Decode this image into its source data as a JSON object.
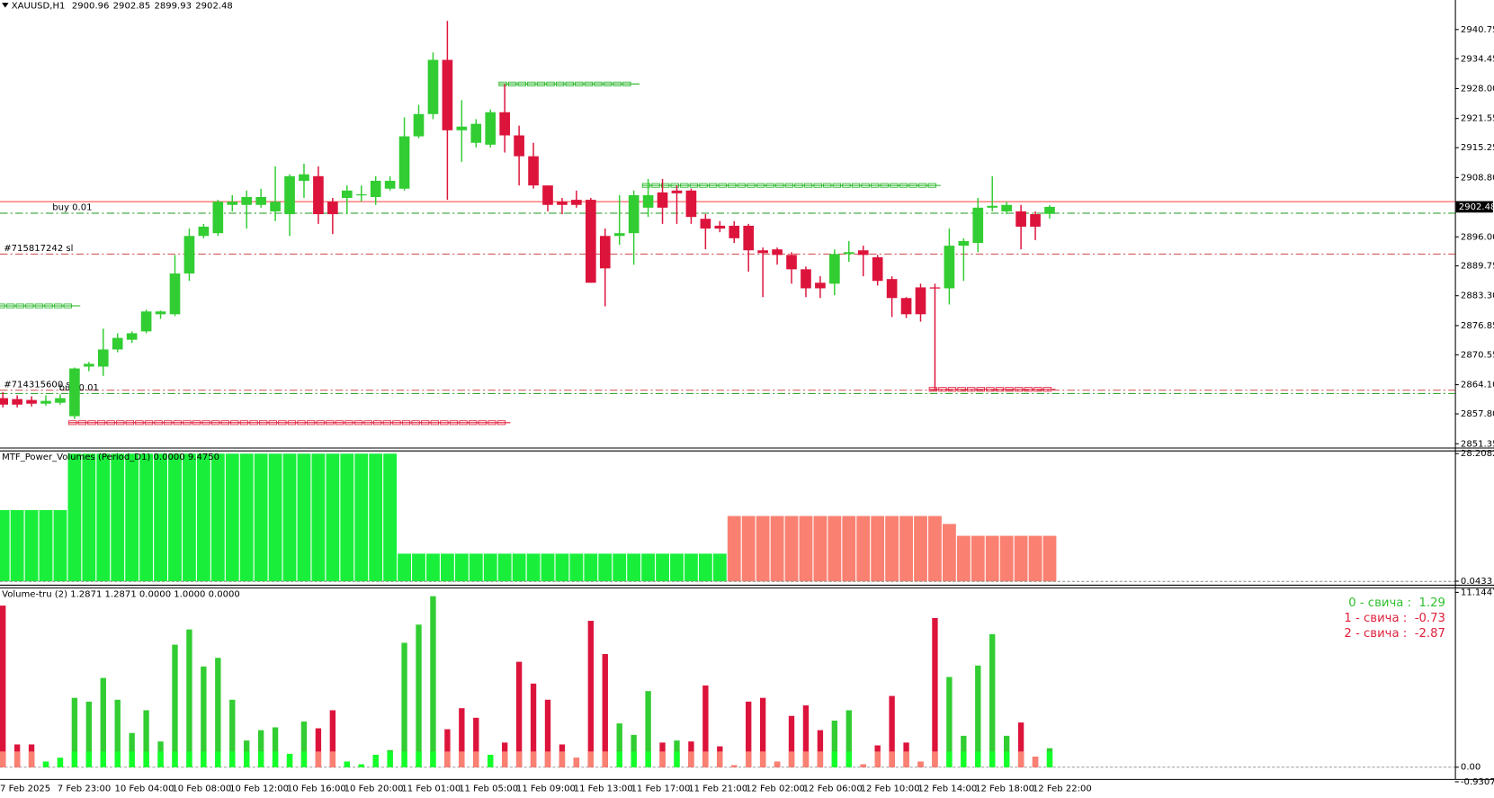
{
  "chart_data": [
    {
      "type": "candlestick",
      "symbol": "XAUUSD,H1",
      "categories": [
        "7 Feb 2025",
        null,
        null,
        null,
        "7 Feb 23:00",
        null,
        null,
        null,
        "10 Feb 04:00",
        null,
        null,
        null,
        "10 Feb 08:00",
        null,
        null,
        null,
        "10 Feb 12:00",
        null,
        null,
        null,
        "10 Feb 16:00",
        null,
        null,
        null,
        "10 Feb 20:00",
        null,
        null,
        null,
        "11 Feb 01:00",
        null,
        null,
        null,
        "11 Feb 05:00",
        null,
        null,
        null,
        "11 Feb 09:00",
        null,
        null,
        null,
        "11 Feb 13:00",
        null,
        null,
        null,
        "11 Feb 17:00",
        null,
        null,
        null,
        "11 Feb 21:00",
        null,
        null,
        null,
        "12 Feb 02:00",
        null,
        null,
        null,
        "12 Feb 06:00",
        null,
        null,
        null,
        "12 Feb 10:00",
        null,
        null,
        null,
        "12 Feb 14:00",
        null,
        null,
        null,
        "12 Feb 18:00",
        null,
        null,
        null,
        "12 Feb 22:00",
        null
      ],
      "open": [
        2861.2,
        2861.0,
        2860.8,
        2860.0,
        2860.2,
        2857.3,
        2868.0,
        2868.0,
        2871.7,
        2873.8,
        2875.6,
        2879.3,
        2879.3,
        2888.1,
        2896.2,
        2896.8,
        2902.9,
        2902.9,
        2902.9,
        2901.5,
        2900.9,
        2908.1,
        2909.1,
        2903.6,
        2904.4,
        2905.0,
        2904.6,
        2906.4,
        2906.4,
        2917.7,
        2922.5,
        2934.2,
        2919.0,
        2916.3,
        2915.9,
        2922.9,
        2917.9,
        2913.4,
        2907.1,
        2903.6,
        2904.0,
        2904.0,
        2896.2,
        2896.2,
        2896.8,
        2902.3,
        2905.6,
        2906.0,
        2906.0,
        2899.9,
        2898.4,
        2898.4,
        2898.4,
        2893.1,
        2893.3,
        2892.1,
        2889.0,
        2886.1,
        2885.9,
        2892.3,
        2893.1,
        2891.6,
        2886.9,
        2882.8,
        2885.1,
        2885.1,
        2884.9,
        2894.1,
        2894.7,
        2902.3,
        2901.5,
        2901.5,
        2900.9,
        2900.96
      ],
      "high": [
        2862.5,
        2861.8,
        2861.6,
        2861.8,
        2862.0,
        2867.8,
        2869.0,
        2876.2,
        2875.2,
        2875.6,
        2880.3,
        2880.1,
        2892.1,
        2897.8,
        2898.8,
        2904.0,
        2905.0,
        2906.0,
        2906.4,
        2911.2,
        2909.5,
        2911.8,
        2911.2,
        2904.4,
        2907.1,
        2907.1,
        2909.1,
        2909.1,
        2921.8,
        2924.5,
        2935.8,
        2942.6,
        2925.5,
        2921.4,
        2923.5,
        2929.0,
        2920.0,
        2916.3,
        2907.1,
        2904.4,
        2906.0,
        2904.4,
        2897.8,
        2905.0,
        2906.0,
        2908.5,
        2908.5,
        2907.1,
        2906.4,
        2900.9,
        2899.4,
        2899.4,
        2898.8,
        2893.7,
        2893.7,
        2892.7,
        2889.6,
        2887.5,
        2893.3,
        2895.1,
        2894.1,
        2892.1,
        2887.5,
        2883.0,
        2885.9,
        2885.9,
        2897.8,
        2895.7,
        2904.4,
        2909.1,
        2903.6,
        2902.9,
        2901.5,
        2902.85
      ],
      "low": [
        2859.2,
        2859.2,
        2859.4,
        2859.6,
        2859.8,
        2856.7,
        2867.0,
        2866.0,
        2871.1,
        2873.1,
        2875.2,
        2878.3,
        2878.9,
        2886.5,
        2895.7,
        2896.2,
        2901.5,
        2897.8,
        2902.3,
        2899.4,
        2896.2,
        2904.4,
        2898.8,
        2896.6,
        2900.9,
        2903.6,
        2902.9,
        2906.0,
        2906.0,
        2917.3,
        2921.4,
        2904.0,
        2912.2,
        2915.3,
        2915.3,
        2914.2,
        2907.1,
        2906.4,
        2901.5,
        2900.9,
        2902.3,
        2886.1,
        2881.0,
        2894.3,
        2890.0,
        2900.3,
        2898.8,
        2898.8,
        2898.8,
        2893.3,
        2897.0,
        2894.7,
        2888.5,
        2883.0,
        2890.0,
        2885.9,
        2883.0,
        2882.8,
        2883.4,
        2890.6,
        2887.5,
        2885.5,
        2878.7,
        2878.5,
        2877.7,
        2862.9,
        2881.4,
        2886.5,
        2892.7,
        2901.5,
        2900.9,
        2893.3,
        2895.3,
        2899.93
      ],
      "close": [
        2859.8,
        2859.8,
        2860.0,
        2860.6,
        2861.2,
        2867.6,
        2868.6,
        2871.7,
        2874.2,
        2875.2,
        2879.9,
        2879.9,
        2888.1,
        2896.2,
        2898.2,
        2903.6,
        2903.6,
        2904.6,
        2904.6,
        2903.6,
        2909.1,
        2909.5,
        2900.9,
        2900.9,
        2906.0,
        2905.2,
        2908.1,
        2908.1,
        2917.7,
        2922.5,
        2934.2,
        2919.0,
        2919.8,
        2920.4,
        2922.9,
        2917.9,
        2913.4,
        2907.1,
        2902.9,
        2902.9,
        2902.9,
        2886.1,
        2889.2,
        2896.8,
        2905.0,
        2905.0,
        2902.3,
        2905.4,
        2900.3,
        2897.8,
        2897.8,
        2895.7,
        2893.1,
        2892.5,
        2892.1,
        2889.0,
        2884.9,
        2884.9,
        2892.3,
        2892.7,
        2892.1,
        2886.5,
        2882.8,
        2879.3,
        2879.3,
        2884.9,
        2894.1,
        2895.1,
        2902.3,
        2902.7,
        2902.9,
        2898.2,
        2898.2,
        2902.48
      ],
      "up_color": "#32cd32",
      "down_color": "#dc143c",
      "ylim": [
        2850.53,
        2947.12
      ],
      "yticks": [
        2940.75,
        2934.45,
        {
          "value": 2928,
          "label": "2928.00"
        },
        2921.55,
        2915.25,
        {
          "value": 2908.8,
          "label": "2908.80"
        },
        {
          "value": 2896,
          "label": "2896.00"
        },
        2889.75,
        {
          "value": 2883.3,
          "label": "2883.30"
        },
        2876.85,
        2870.55,
        {
          "value": 2864.1,
          "label": "2864.10"
        },
        {
          "value": 2857.8,
          "label": "2857.80"
        },
        2851.35
      ],
      "levels": [
        {
          "value": 2903.6,
          "color": "#ff3b3b",
          "style": "solid"
        },
        {
          "value": 2901.1,
          "color": "#1c9a1c",
          "style": "dashdot",
          "label": "buy 0.01"
        },
        {
          "value": 2892.3,
          "color": "#d04848",
          "style": "dashdot",
          "label": "#715817242 sl"
        },
        {
          "value": 2862.9,
          "color": "#d04848",
          "style": "dashdot",
          "label": "#714315600 sl"
        },
        {
          "value": 2862.2,
          "color": "#1c9a1c",
          "style": "dashdot",
          "label": "buy 0.01"
        }
      ],
      "zones": [
        {
          "value": 2929.0,
          "from": 35,
          "to": 44,
          "color": "#22b422"
        },
        {
          "value": 2907.1,
          "from": 45,
          "to": 65,
          "color": "#22b422"
        },
        {
          "value": 2881.1,
          "from": 0,
          "to": 5,
          "color": "#22b422"
        },
        {
          "value": 2855.9,
          "from": 5,
          "to": 35,
          "color": "#e0203c"
        },
        {
          "value": 2863.1,
          "from": 65,
          "to": 73,
          "color": "#e0203c"
        }
      ]
    },
    {
      "type": "histogram-bar",
      "title": "MTF_Power_Volumes (Period_D1) 0.0000 9.4750",
      "values": [
        15.74,
        15.74,
        15.74,
        15.74,
        15.74,
        28.2,
        28.2,
        28.2,
        28.2,
        28.2,
        28.2,
        28.2,
        28.2,
        28.2,
        28.2,
        28.2,
        28.2,
        28.2,
        28.2,
        28.2,
        28.2,
        28.2,
        28.2,
        28.2,
        28.2,
        28.2,
        28.2,
        28.2,
        6.12,
        6.12,
        6.12,
        6.12,
        6.12,
        6.12,
        6.12,
        6.12,
        6.12,
        6.12,
        6.12,
        6.12,
        6.12,
        6.12,
        6.12,
        6.12,
        6.12,
        6.12,
        6.12,
        6.12,
        6.12,
        6.12,
        6.12,
        14.43,
        14.43,
        14.43,
        14.43,
        14.43,
        14.43,
        14.43,
        14.43,
        14.43,
        14.43,
        14.43,
        14.43,
        14.43,
        14.43,
        14.43,
        12.68,
        10.06,
        10.06,
        10.06,
        10.06,
        10.06,
        10.06,
        10.06
      ],
      "directions": [
        "up",
        "up",
        "up",
        "up",
        "up",
        "up",
        "up",
        "up",
        "up",
        "up",
        "up",
        "up",
        "up",
        "up",
        "up",
        "up",
        "up",
        "up",
        "up",
        "up",
        "up",
        "up",
        "up",
        "up",
        "up",
        "up",
        "up",
        "up",
        "up",
        "up",
        "up",
        "up",
        "up",
        "up",
        "up",
        "up",
        "up",
        "up",
        "up",
        "up",
        "up",
        "up",
        "up",
        "up",
        "up",
        "up",
        "up",
        "up",
        "up",
        "up",
        "up",
        "down",
        "down",
        "down",
        "down",
        "down",
        "down",
        "down",
        "down",
        "down",
        "down",
        "down",
        "down",
        "down",
        "down",
        "down",
        "down",
        "down",
        "down",
        "down",
        "down",
        "down",
        "down",
        "down"
      ],
      "up_color": "#19ef3b",
      "down_color": "#fa8072",
      "ylim": [
        -0.1,
        28.7
      ],
      "yticks": [
        28.2082,
        0.0433
      ]
    },
    {
      "type": "volume-bar",
      "title": "Volume-tru (2) 1.2871 1.2871 0.0000 1.0000 0.0000",
      "values": [
        10.3,
        1.45,
        1.45,
        0.36,
        0.6,
        4.42,
        4.18,
        5.69,
        4.3,
        2.18,
        3.63,
        1.64,
        7.81,
        8.78,
        6.42,
        6.97,
        4.3,
        1.7,
        2.36,
        2.54,
        0.85,
        2.91,
        2.48,
        3.63,
        0.36,
        0.18,
        0.79,
        1.09,
        7.93,
        9.09,
        10.9,
        2.42,
        3.76,
        3.15,
        0.79,
        1.57,
        6.72,
        5.33,
        4.3,
        1.45,
        0.6,
        9.33,
        7.21,
        2.79,
        2.06,
        4.85,
        1.57,
        1.7,
        1.64,
        5.21,
        1.33,
        0.12,
        4.18,
        4.42,
        0.36,
        3.27,
        3.94,
        2.36,
        2.97,
        3.63,
        0.18,
        1.39,
        4.54,
        1.57,
        0.36,
        9.51,
        5.75,
        2.0,
        6.48,
        8.48,
        2.0,
        2.85,
        0.67,
        1.21
      ],
      "directions": [
        "down",
        "down",
        "down",
        "up",
        "up",
        "up",
        "up",
        "up",
        "up",
        "up",
        "up",
        "up",
        "up",
        "up",
        "up",
        "up",
        "up",
        "up",
        "up",
        "up",
        "up",
        "up",
        "down",
        "down",
        "up",
        "up",
        "up",
        "up",
        "up",
        "up",
        "up",
        "down",
        "down",
        "down",
        "up",
        "down",
        "down",
        "down",
        "down",
        "down",
        "down",
        "down",
        "down",
        "up",
        "up",
        "up",
        "down",
        "up",
        "down",
        "down",
        "down",
        "down",
        "down",
        "down",
        "down",
        "down",
        "down",
        "down",
        "up",
        "up",
        "down",
        "down",
        "down",
        "down",
        "down",
        "down",
        "up",
        "up",
        "up",
        "up",
        "up",
        "down",
        "down",
        "up"
      ],
      "base": 1.0,
      "up_color": "#32cd32",
      "down_color": "#dc143c",
      "up_base_color": "#14ff2a",
      "down_base_color": "#fa8072",
      "ylim": [
        -0.75,
        11.33
      ],
      "yticks": [
        11.1447,
        {
          "value": 0,
          "label": "0.00"
        },
        -0.9307
      ],
      "annotations": [
        {
          "label": "0 - свича :",
          "value": 1.29,
          "color": "#2fbf2f"
        },
        {
          "label": "1 - свича :",
          "value": -0.73,
          "color": "#e0203c"
        },
        {
          "label": "2 - свича :",
          "value": -2.87,
          "color": "#e0203c"
        }
      ]
    }
  ]
}
